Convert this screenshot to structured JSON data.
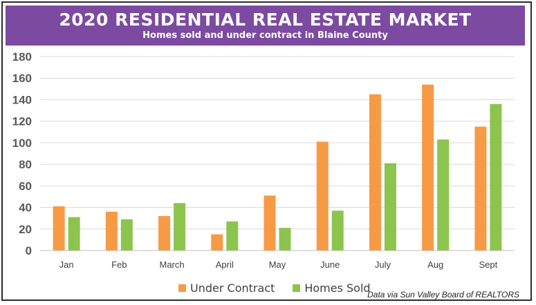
{
  "banner": {
    "title": "2020 RESIDENTIAL REAL ESTATE MARKET",
    "subtitle": "Homes sold and under contract in Blaine County",
    "color": "#7c4aa1"
  },
  "source_note": "Data via Sun Valley Board of REALTORS",
  "chart_data": {
    "type": "bar",
    "title": "2020 RESIDENTIAL REAL ESTATE MARKET",
    "subtitle": "Homes sold and under contract in Blaine County",
    "categories": [
      "Jan",
      "Feb",
      "March",
      "April",
      "May",
      "June",
      "July",
      "Aug",
      "Sept"
    ],
    "series": [
      {
        "name": "Under Contract",
        "color": "#f79a46",
        "values": [
          41,
          36,
          32,
          15,
          51,
          101,
          145,
          154,
          115
        ]
      },
      {
        "name": "Homes Sold",
        "color": "#8dc44e",
        "values": [
          31,
          29,
          44,
          27,
          21,
          37,
          81,
          103,
          136
        ]
      }
    ],
    "xlabel": "",
    "ylabel": "",
    "ylim": [
      0,
      180
    ],
    "yticks": [
      0,
      20,
      40,
      60,
      80,
      100,
      120,
      140,
      160,
      180
    ],
    "grid": true,
    "legend_position": "bottom"
  }
}
